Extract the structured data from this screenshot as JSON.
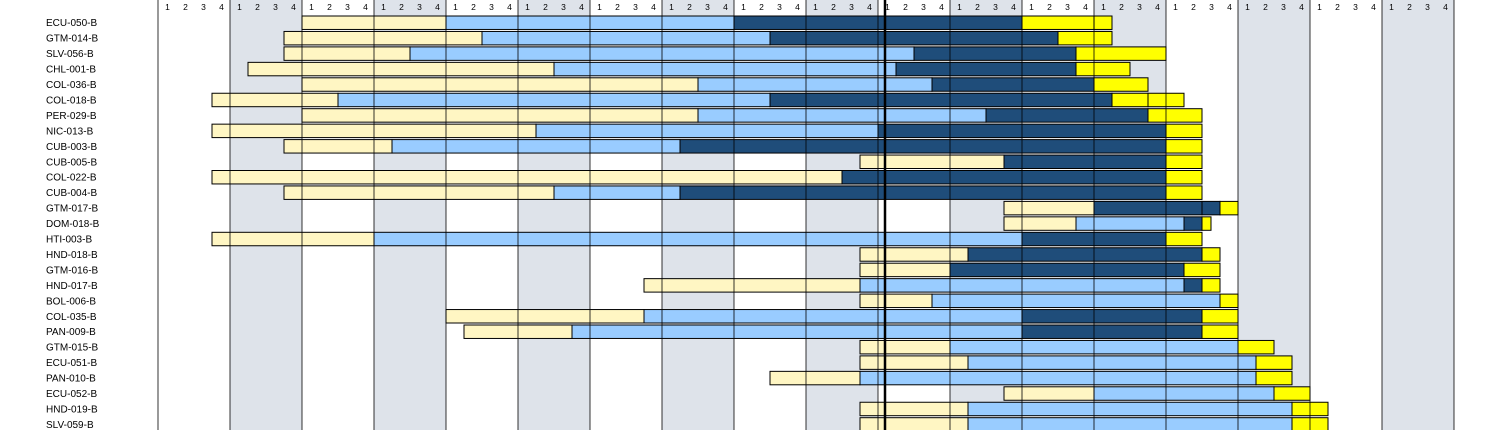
{
  "chart_data": {
    "type": "gantt",
    "title": "",
    "xlabel": "",
    "ylabel": "",
    "quarter_labels": [
      "1",
      "2",
      "3",
      "4"
    ],
    "num_years": 18,
    "current_position_quarters": 40,
    "colors": {
      "phase1": "#fff6c3",
      "phase2": "#99ccff",
      "phase3": "#1f4d7a",
      "phase4": "#ffff00",
      "year_band": "#dee3ea",
      "year_white": "#ffffff",
      "grid": "#000000"
    },
    "rows": [
      {
        "label": "ECU-050-B",
        "segments": [
          {
            "start": 8,
            "end": 16,
            "phase": "phase1"
          },
          {
            "start": 16,
            "end": 32,
            "phase": "phase2"
          },
          {
            "start": 32,
            "end": 48,
            "phase": "phase3"
          },
          {
            "start": 48,
            "end": 52,
            "phase": "phase4"
          },
          {
            "start": 52,
            "end": 53,
            "phase": "phase4"
          }
        ]
      },
      {
        "label": "GTM-014-B",
        "segments": [
          {
            "start": 7,
            "end": 18,
            "phase": "phase1"
          },
          {
            "start": 18,
            "end": 34,
            "phase": "phase2"
          },
          {
            "start": 34,
            "end": 50,
            "phase": "phase3"
          },
          {
            "start": 50,
            "end": 53,
            "phase": "phase4"
          }
        ]
      },
      {
        "label": "SLV-056-B",
        "segments": [
          {
            "start": 7,
            "end": 14,
            "phase": "phase1"
          },
          {
            "start": 14,
            "end": 42,
            "phase": "phase2"
          },
          {
            "start": 42,
            "end": 51,
            "phase": "phase3"
          },
          {
            "start": 51,
            "end": 56,
            "phase": "phase4"
          }
        ]
      },
      {
        "label": "CHL-001-B",
        "segments": [
          {
            "start": 5,
            "end": 22,
            "phase": "phase1"
          },
          {
            "start": 22,
            "end": 41,
            "phase": "phase2"
          },
          {
            "start": 41,
            "end": 51,
            "phase": "phase3"
          },
          {
            "start": 51,
            "end": 54,
            "phase": "phase4"
          }
        ]
      },
      {
        "label": "COL-036-B",
        "segments": [
          {
            "start": 8,
            "end": 30,
            "phase": "phase1"
          },
          {
            "start": 30,
            "end": 43,
            "phase": "phase2"
          },
          {
            "start": 43,
            "end": 52,
            "phase": "phase3"
          },
          {
            "start": 52,
            "end": 55,
            "phase": "phase4"
          }
        ]
      },
      {
        "label": "COL-018-B",
        "segments": [
          {
            "start": 3,
            "end": 10,
            "phase": "phase1"
          },
          {
            "start": 10,
            "end": 34,
            "phase": "phase2"
          },
          {
            "start": 34,
            "end": 53,
            "phase": "phase3"
          },
          {
            "start": 53,
            "end": 55,
            "phase": "phase4"
          },
          {
            "start": 55,
            "end": 57,
            "phase": "phase4"
          }
        ]
      },
      {
        "label": "PER-029-B",
        "segments": [
          {
            "start": 8,
            "end": 30,
            "phase": "phase1"
          },
          {
            "start": 30,
            "end": 46,
            "phase": "phase2"
          },
          {
            "start": 46,
            "end": 55,
            "phase": "phase3"
          },
          {
            "start": 55,
            "end": 58,
            "phase": "phase4"
          }
        ]
      },
      {
        "label": "NIC-013-B",
        "segments": [
          {
            "start": 3,
            "end": 21,
            "phase": "phase1"
          },
          {
            "start": 21,
            "end": 40,
            "phase": "phase2"
          },
          {
            "start": 40,
            "end": 56,
            "phase": "phase3"
          },
          {
            "start": 56,
            "end": 58,
            "phase": "phase4"
          }
        ]
      },
      {
        "label": "CUB-003-B",
        "segments": [
          {
            "start": 7,
            "end": 13,
            "phase": "phase1"
          },
          {
            "start": 13,
            "end": 29,
            "phase": "phase2"
          },
          {
            "start": 29,
            "end": 56,
            "phase": "phase3"
          },
          {
            "start": 56,
            "end": 58,
            "phase": "phase4"
          }
        ]
      },
      {
        "label": "CUB-005-B",
        "segments": [
          {
            "start": 39,
            "end": 47,
            "phase": "phase1"
          },
          {
            "start": 47,
            "end": 56,
            "phase": "phase3"
          },
          {
            "start": 56,
            "end": 58,
            "phase": "phase4"
          }
        ]
      },
      {
        "label": "COL-022-B",
        "segments": [
          {
            "start": 3,
            "end": 38,
            "phase": "phase1"
          },
          {
            "start": 38,
            "end": 56,
            "phase": "phase3"
          },
          {
            "start": 56,
            "end": 58,
            "phase": "phase4"
          }
        ]
      },
      {
        "label": "CUB-004-B",
        "segments": [
          {
            "start": 7,
            "end": 22,
            "phase": "phase1"
          },
          {
            "start": 22,
            "end": 29,
            "phase": "phase2"
          },
          {
            "start": 29,
            "end": 56,
            "phase": "phase3"
          },
          {
            "start": 56,
            "end": 58,
            "phase": "phase4"
          }
        ]
      },
      {
        "label": "GTM-017-B",
        "segments": [
          {
            "start": 47,
            "end": 52,
            "phase": "phase1"
          },
          {
            "start": 52,
            "end": 58,
            "phase": "phase3"
          },
          {
            "start": 58,
            "end": 59,
            "phase": "phase3"
          },
          {
            "start": 59,
            "end": 60,
            "phase": "phase4"
          }
        ]
      },
      {
        "label": "DOM-018-B",
        "segments": [
          {
            "start": 47,
            "end": 51,
            "phase": "phase1"
          },
          {
            "start": 51,
            "end": 57,
            "phase": "phase2"
          },
          {
            "start": 57,
            "end": 58,
            "phase": "phase3"
          },
          {
            "start": 58,
            "end": 58.5,
            "phase": "phase4"
          }
        ]
      },
      {
        "label": "HTI-003-B",
        "segments": [
          {
            "start": 3,
            "end": 12,
            "phase": "phase1"
          },
          {
            "start": 12,
            "end": 48,
            "phase": "phase2"
          },
          {
            "start": 48,
            "end": 56,
            "phase": "phase3"
          },
          {
            "start": 56,
            "end": 58,
            "phase": "phase4"
          }
        ]
      },
      {
        "label": "HND-018-B",
        "segments": [
          {
            "start": 39,
            "end": 45,
            "phase": "phase1"
          },
          {
            "start": 45,
            "end": 58,
            "phase": "phase3"
          },
          {
            "start": 58,
            "end": 59,
            "phase": "phase4"
          }
        ]
      },
      {
        "label": "GTM-016-B",
        "segments": [
          {
            "start": 39,
            "end": 44,
            "phase": "phase1"
          },
          {
            "start": 44,
            "end": 57,
            "phase": "phase3"
          },
          {
            "start": 57,
            "end": 59,
            "phase": "phase4"
          }
        ]
      },
      {
        "label": "HND-017-B",
        "segments": [
          {
            "start": 27,
            "end": 39,
            "phase": "phase1"
          },
          {
            "start": 39,
            "end": 57,
            "phase": "phase2"
          },
          {
            "start": 57,
            "end": 58,
            "phase": "phase3"
          },
          {
            "start": 58,
            "end": 59,
            "phase": "phase4"
          }
        ]
      },
      {
        "label": "BOL-006-B",
        "segments": [
          {
            "start": 39,
            "end": 43,
            "phase": "phase1"
          },
          {
            "start": 43,
            "end": 59,
            "phase": "phase2"
          },
          {
            "start": 59,
            "end": 60,
            "phase": "phase4"
          }
        ]
      },
      {
        "label": "COL-035-B",
        "segments": [
          {
            "start": 16,
            "end": 27,
            "phase": "phase1"
          },
          {
            "start": 27,
            "end": 48,
            "phase": "phase2"
          },
          {
            "start": 48,
            "end": 58,
            "phase": "phase3"
          },
          {
            "start": 58,
            "end": 60,
            "phase": "phase4"
          }
        ]
      },
      {
        "label": "PAN-009-B",
        "segments": [
          {
            "start": 17,
            "end": 23,
            "phase": "phase1"
          },
          {
            "start": 23,
            "end": 48,
            "phase": "phase2"
          },
          {
            "start": 48,
            "end": 58,
            "phase": "phase3"
          },
          {
            "start": 58,
            "end": 60,
            "phase": "phase4"
          }
        ]
      },
      {
        "label": "GTM-015-B",
        "segments": [
          {
            "start": 39,
            "end": 44,
            "phase": "phase1"
          },
          {
            "start": 44,
            "end": 60,
            "phase": "phase2"
          },
          {
            "start": 60,
            "end": 62,
            "phase": "phase4"
          }
        ]
      },
      {
        "label": "ECU-051-B",
        "segments": [
          {
            "start": 39,
            "end": 45,
            "phase": "phase1"
          },
          {
            "start": 45,
            "end": 61,
            "phase": "phase2"
          },
          {
            "start": 61,
            "end": 63,
            "phase": "phase4"
          }
        ]
      },
      {
        "label": "PAN-010-B",
        "segments": [
          {
            "start": 34,
            "end": 39,
            "phase": "phase1"
          },
          {
            "start": 39,
            "end": 61,
            "phase": "phase2"
          },
          {
            "start": 61,
            "end": 63,
            "phase": "phase4"
          }
        ]
      },
      {
        "label": "ECU-052-B",
        "segments": [
          {
            "start": 47,
            "end": 52,
            "phase": "phase1"
          },
          {
            "start": 52,
            "end": 62,
            "phase": "phase2"
          },
          {
            "start": 62,
            "end": 64,
            "phase": "phase4"
          }
        ]
      },
      {
        "label": "HND-019-B",
        "segments": [
          {
            "start": 39,
            "end": 45,
            "phase": "phase1"
          },
          {
            "start": 45,
            "end": 63,
            "phase": "phase2"
          },
          {
            "start": 63,
            "end": 65,
            "phase": "phase4"
          }
        ]
      },
      {
        "label": "SLV-059-B",
        "segments": [
          {
            "start": 39,
            "end": 45,
            "phase": "phase1"
          },
          {
            "start": 45,
            "end": 63,
            "phase": "phase2"
          },
          {
            "start": 63,
            "end": 65,
            "phase": "phase4"
          }
        ]
      }
    ]
  }
}
